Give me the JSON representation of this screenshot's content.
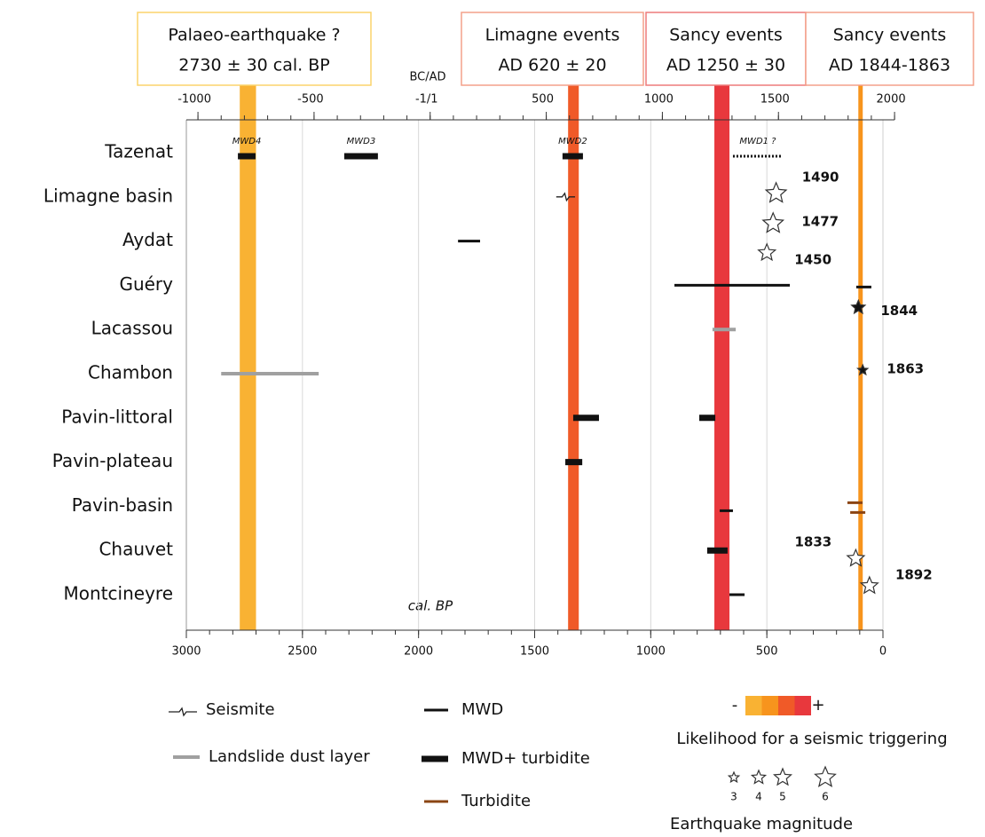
{
  "chart_data": {
    "type": "timeline",
    "xlabel": "cal. BP",
    "x2label": "BC/AD",
    "xlim": [
      3000,
      0
    ],
    "xticks": [
      3000,
      2500,
      2000,
      1500,
      1000,
      500,
      0
    ],
    "x2lim": [
      -1050,
      2000
    ],
    "x2ticks": [
      -1000,
      -500,
      {
        "value": 0,
        "label": "-1/1"
      },
      500,
      1000,
      1500,
      2000
    ],
    "grid": true,
    "bands": [
      {
        "title": "Palaeo-earthquake ?",
        "subtitle": "2730 ± 30 cal. BP",
        "start": 2770,
        "end": 2700,
        "color": "#f9b233",
        "border": "#fbd36b"
      },
      {
        "title": "Limagne events",
        "subtitle": "AD 620 ± 20",
        "start": 1356,
        "end": 1310,
        "color": "#f05a28",
        "border": "#f4a08a"
      },
      {
        "title": "Sancy events",
        "subtitle": "AD 1250 ± 30",
        "start": 726,
        "end": 661,
        "color": "#e8383d",
        "border": "#ee7b7b"
      },
      {
        "title": "Sancy events",
        "subtitle": "AD 1844-1863",
        "start": 106,
        "end": 87,
        "color": "#f7941d",
        "border": "#f4a08a"
      }
    ],
    "rows": [
      {
        "name": "Tazenat",
        "layers": [
          {
            "kind": "mwd_turbidite",
            "start": 2778,
            "end": 2702,
            "label": "MWD4"
          },
          {
            "kind": "mwd_turbidite",
            "start": 2320,
            "end": 2175,
            "label": "MWD3"
          },
          {
            "kind": "mwd_turbidite",
            "start": 1380,
            "end": 1292,
            "label": "MWD2"
          },
          {
            "kind": "mwd_dotted",
            "start": 646,
            "end": 432,
            "label": "MWD1 ?"
          }
        ],
        "earthquakes": []
      },
      {
        "name": "Limagne basin",
        "layers": [
          {
            "kind": "seismite",
            "start": 1407,
            "end": 1326
          }
        ],
        "earthquakes": [
          {
            "year": 1490,
            "magnitude": 6,
            "filled": false
          },
          {
            "year": 1477,
            "magnitude": 6,
            "filled": false
          },
          {
            "year": 1450,
            "magnitude": 5,
            "filled": false
          }
        ]
      },
      {
        "name": "Aydat",
        "layers": [
          {
            "kind": "mwd",
            "start": 1830,
            "end": 1735
          }
        ],
        "earthquakes": []
      },
      {
        "name": "Guéry",
        "layers": [
          {
            "kind": "mwd",
            "start": 898,
            "end": 401
          },
          {
            "kind": "mwd",
            "start": 115,
            "end": 50
          }
        ],
        "earthquakes": [
          {
            "year": 1844,
            "magnitude": 4,
            "filled": true
          }
        ]
      },
      {
        "name": "Lacassou",
        "layers": [
          {
            "kind": "landslide",
            "start": 734,
            "end": 634
          }
        ],
        "earthquakes": []
      },
      {
        "name": "Chambon",
        "layers": [
          {
            "kind": "landslide",
            "start": 2850,
            "end": 2430
          }
        ],
        "earthquakes": [
          {
            "year": 1863,
            "magnitude": 3,
            "filled": true
          }
        ]
      },
      {
        "name": "Pavin-littoral",
        "layers": [
          {
            "kind": "mwd_turbidite",
            "start": 1334,
            "end": 1223
          },
          {
            "kind": "mwd_turbidite",
            "start": 791,
            "end": 722
          }
        ],
        "earthquakes": []
      },
      {
        "name": "Pavin-plateau",
        "layers": [
          {
            "kind": "mwd_turbidite",
            "start": 1368,
            "end": 1295
          }
        ],
        "earthquakes": []
      },
      {
        "name": "Pavin-basin",
        "layers": [
          {
            "kind": "mwd",
            "start": 703,
            "end": 646
          },
          {
            "kind": "turbidite",
            "start": 153,
            "end": 88
          },
          {
            "kind": "turbidite",
            "start": 141,
            "end": 76
          }
        ],
        "earthquakes": []
      },
      {
        "name": "Chauvet",
        "layers": [
          {
            "kind": "mwd_turbidite",
            "start": 757,
            "end": 669
          }
        ],
        "earthquakes": [
          {
            "year": 1833,
            "magnitude": 5,
            "filled": false
          }
        ]
      },
      {
        "name": "Montcineyre",
        "layers": [
          {
            "kind": "mwd",
            "start": 661,
            "end": 596
          }
        ],
        "earthquakes": [
          {
            "year": 1892,
            "magnitude": 5,
            "filled": false
          }
        ]
      }
    ],
    "legend": {
      "items": [
        {
          "name": "Seismite",
          "kind": "seismite",
          "color": "#222222"
        },
        {
          "name": "Landslide dust layer",
          "kind": "landslide",
          "color": "#a0a0a0"
        },
        {
          "name": "MWD",
          "kind": "mwd",
          "color": "#111111"
        },
        {
          "name": "MWD+ turbidite",
          "kind": "mwd_turbidite",
          "color": "#111111"
        },
        {
          "name": "Turbidite",
          "kind": "turbidite",
          "color": "#8b4513"
        }
      ],
      "likelihood": {
        "title": "Likelihood for a seismic triggering",
        "low": "-",
        "high": "+",
        "colors": [
          "#f9b233",
          "#f7941d",
          "#f05a28",
          "#e8383d"
        ]
      },
      "magnitude": {
        "title": "Earthquake magnitude",
        "values": [
          3,
          4,
          5,
          6
        ]
      }
    }
  }
}
